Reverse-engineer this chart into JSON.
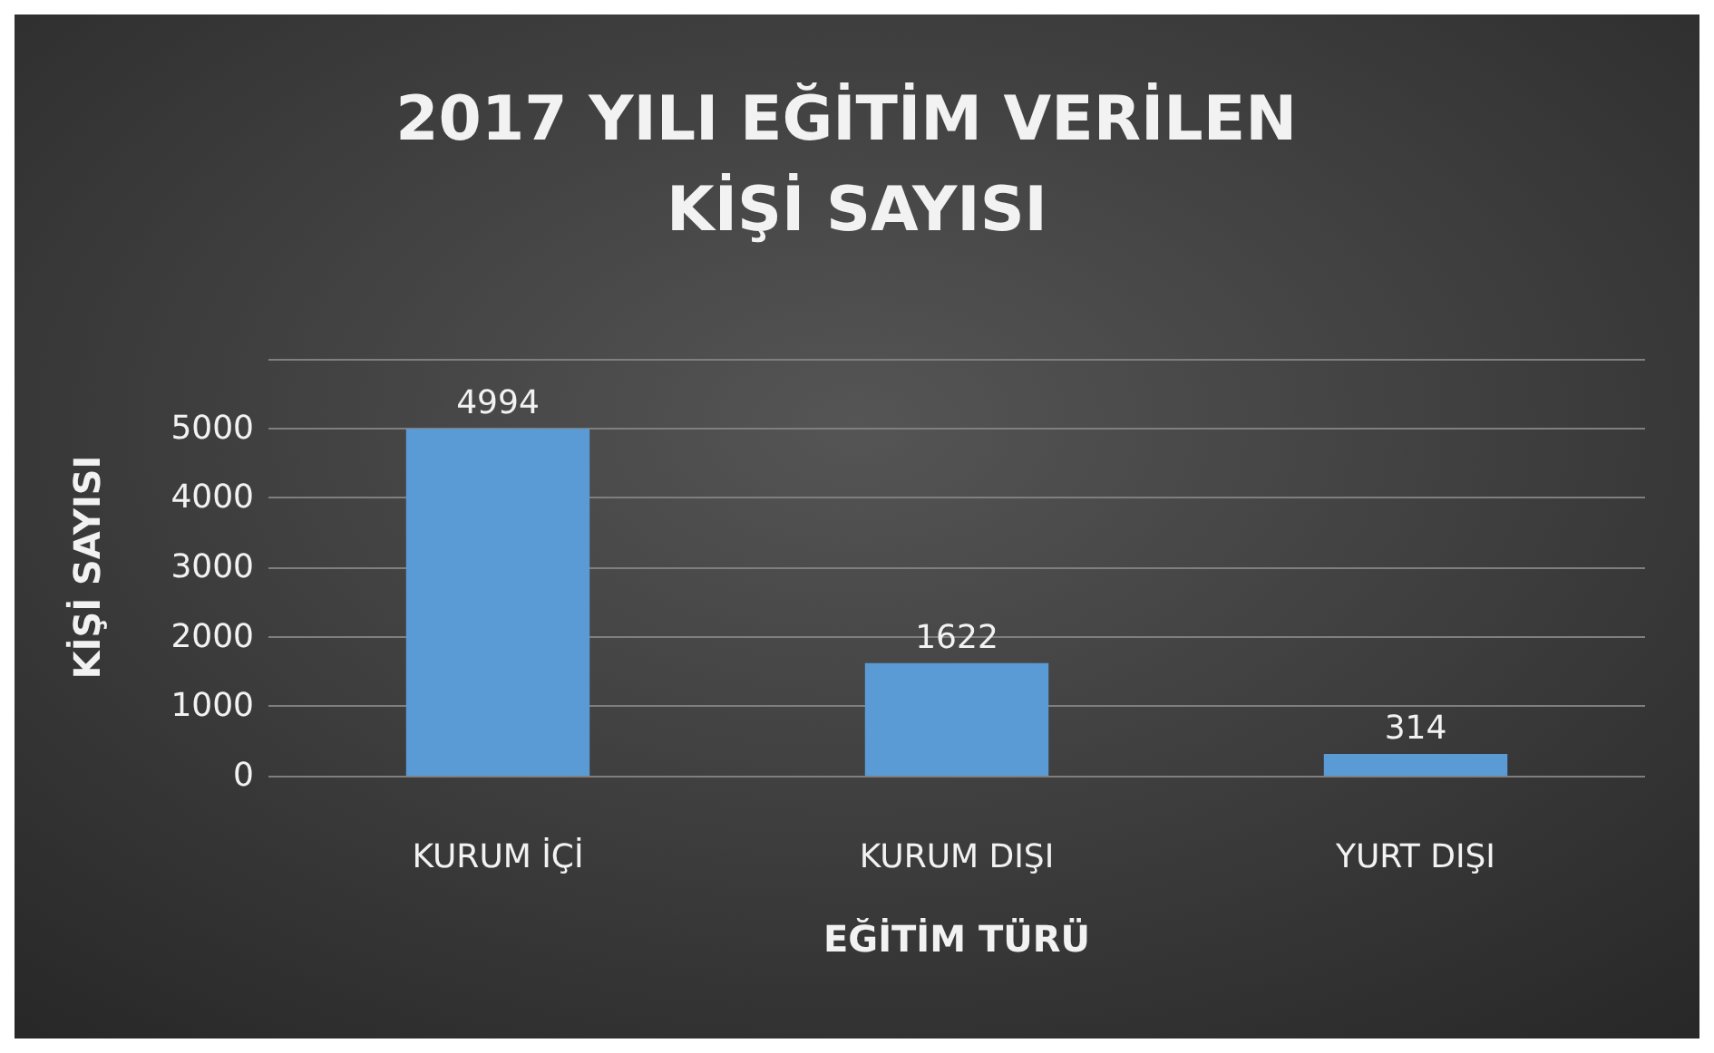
{
  "chart_data": {
    "type": "bar",
    "title": "2017 YILI EĞİTİM VERİLEN KİŞİ SAYISI",
    "xlabel": "EĞİTİM TÜRÜ",
    "ylabel": "KİŞİ SAYISI",
    "categories": [
      "KURUM İÇİ",
      "KURUM DIŞI",
      "YURT DIŞI"
    ],
    "values": [
      4994,
      1622,
      314
    ],
    "color": "#5b9bd5",
    "ylim": [
      0,
      6000
    ],
    "yticks": [
      0,
      1000,
      2000,
      3000,
      4000,
      5000,
      {
        "value": 6000,
        "label": null
      }
    ],
    "grid": "y",
    "data_labels": true
  }
}
